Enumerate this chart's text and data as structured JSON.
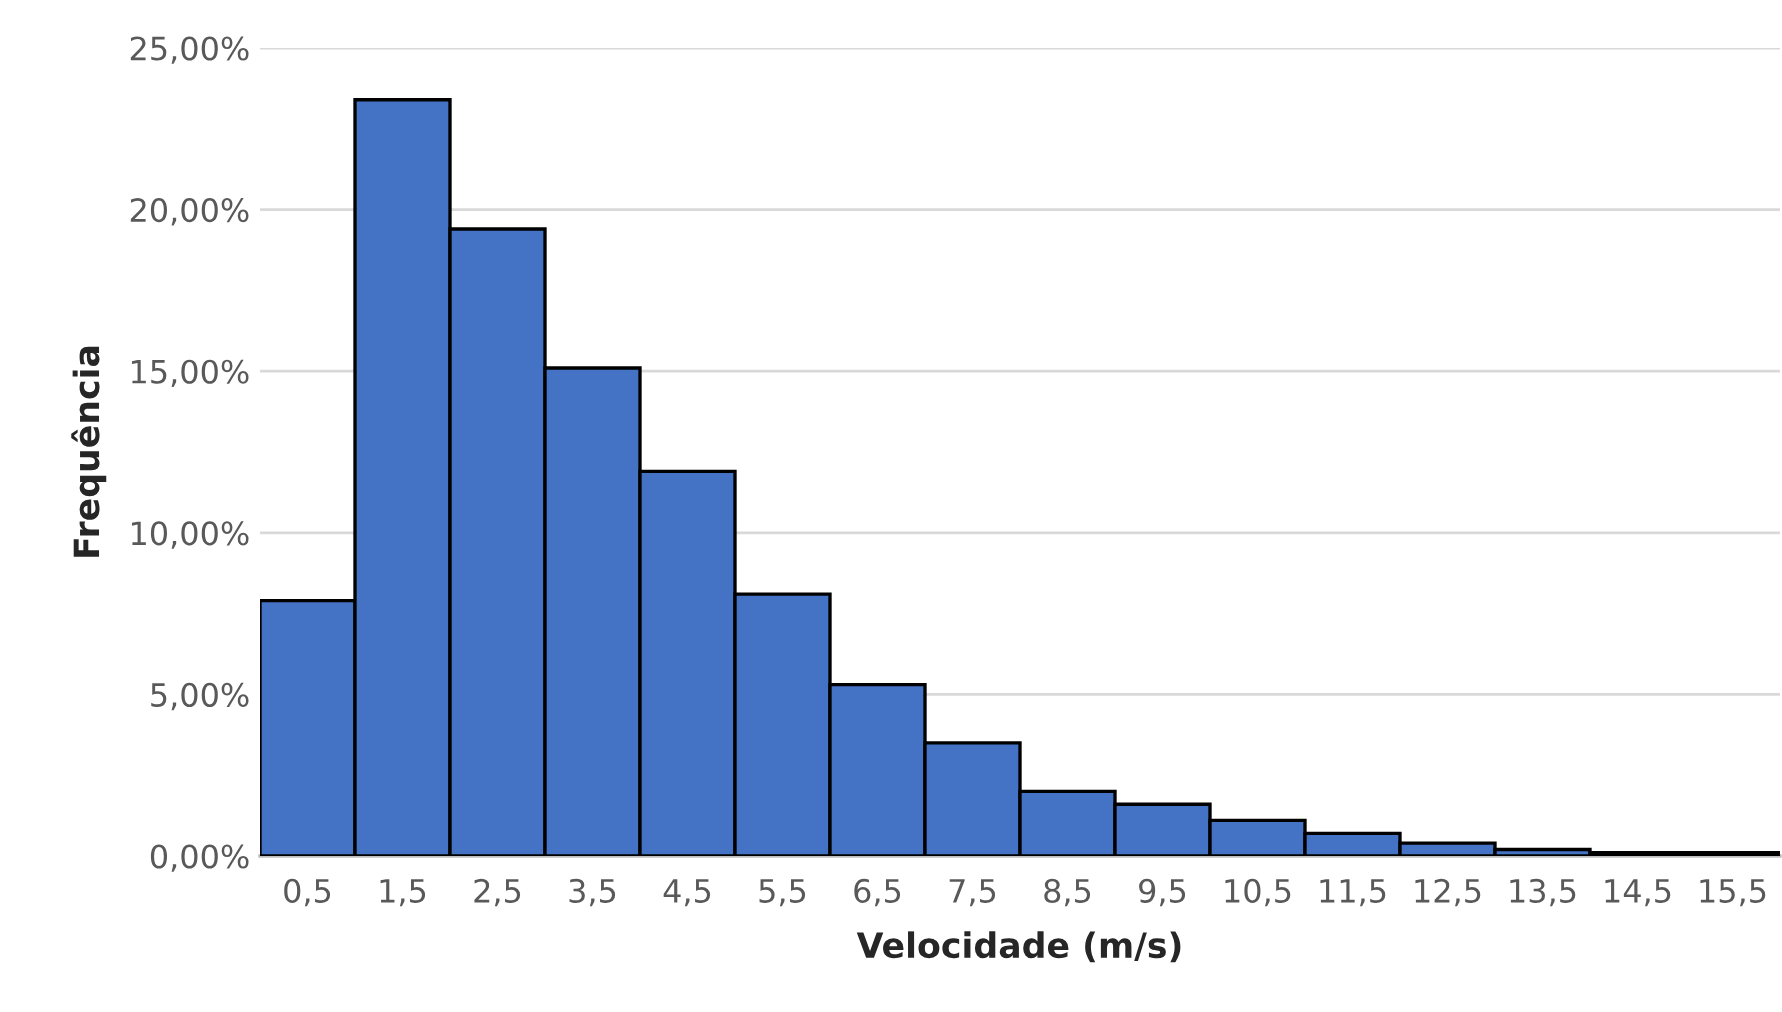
{
  "chart_data": {
    "type": "bar",
    "xlabel": "Velocidade (m/s)",
    "ylabel": "Frequência",
    "categories": [
      "0,5",
      "1,5",
      "2,5",
      "3,5",
      "4,5",
      "5,5",
      "6,5",
      "7,5",
      "8,5",
      "9,5",
      "10,5",
      "11,5",
      "12,5",
      "13,5",
      "14,5",
      "15,5"
    ],
    "values": [
      7.9,
      23.4,
      19.4,
      15.1,
      11.9,
      8.1,
      5.3,
      3.5,
      2.0,
      1.6,
      1.1,
      0.7,
      0.4,
      0.2,
      0.1,
      0.1
    ],
    "color": "#4472c4",
    "ylim": [
      0,
      25
    ],
    "yticks": [
      {
        "value": 0,
        "label": "0,00%"
      },
      {
        "value": 5,
        "label": "5,00%"
      },
      {
        "value": 10,
        "label": "10,00%"
      },
      {
        "value": 15,
        "label": "15,00%"
      },
      {
        "value": 20,
        "label": "20,00%"
      },
      {
        "value": 25,
        "label": "25,00%"
      }
    ],
    "grid": "y",
    "legend": false
  }
}
